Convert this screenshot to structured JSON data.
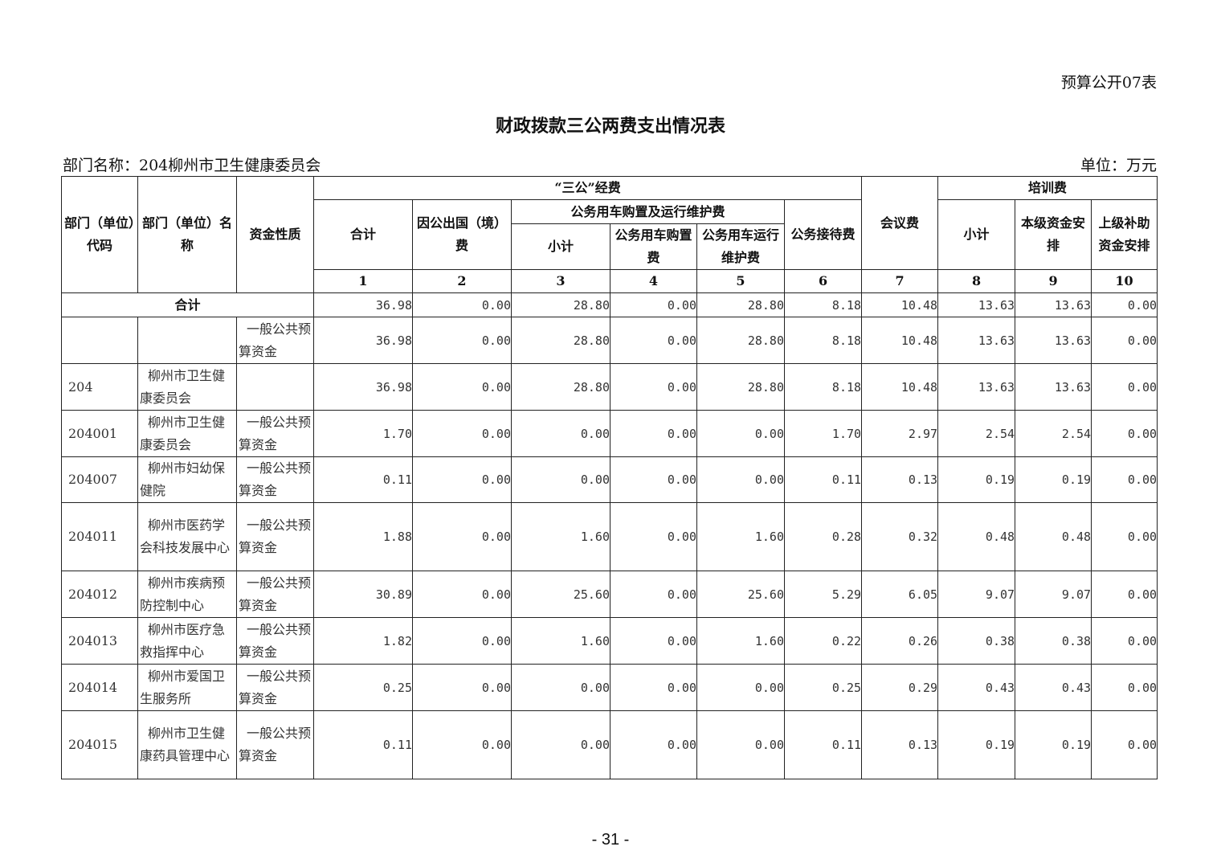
{
  "form_no": "预算公开07表",
  "title": "财政拨款三公两费支出情况表",
  "dept_label": "部门名称：204柳州市卫生健康委员会",
  "unit_label": "单位：万元",
  "headers": {
    "code": "部门（单位）代码",
    "name": "部门（单位）名称",
    "fund": "资金性质",
    "sangong": "“三公”经费",
    "total": "合计",
    "abroad": "因公出国（境）费",
    "car": "公务用车购置及运行维护费",
    "car_sub": "小计",
    "car_buy": "公务用车购置费",
    "car_run": "公务用车运行维护费",
    "reception": "公务接待费",
    "meeting": "会议费",
    "training": "培训费",
    "train_sub": "小计",
    "train_local": "本级资金安排",
    "train_upper": "上级补助资金安排",
    "col_numbers": [
      "1",
      "2",
      "3",
      "4",
      "5",
      "6",
      "7",
      "8",
      "9",
      "10"
    ]
  },
  "total_row": {
    "label": "合计",
    "values": [
      "36.98",
      "0.00",
      "28.80",
      "0.00",
      "28.80",
      "8.18",
      "10.48",
      "13.63",
      "13.63",
      "0.00"
    ]
  },
  "rows": [
    {
      "code": "",
      "name": "",
      "fund": "一般公共预算资金",
      "values": [
        "36.98",
        "0.00",
        "28.80",
        "0.00",
        "28.80",
        "8.18",
        "10.48",
        "13.63",
        "13.63",
        "0.00"
      ]
    },
    {
      "code": "204",
      "name": "柳州市卫生健康委员会",
      "fund": "",
      "values": [
        "36.98",
        "0.00",
        "28.80",
        "0.00",
        "28.80",
        "8.18",
        "10.48",
        "13.63",
        "13.63",
        "0.00"
      ]
    },
    {
      "code": "204001",
      "name": "柳州市卫生健康委员会",
      "fund": "一般公共预算资金",
      "values": [
        "1.70",
        "0.00",
        "0.00",
        "0.00",
        "0.00",
        "1.70",
        "2.97",
        "2.54",
        "2.54",
        "0.00"
      ]
    },
    {
      "code": "204007",
      "name": "柳州市妇幼保健院",
      "fund": "一般公共预算资金",
      "values": [
        "0.11",
        "0.00",
        "0.00",
        "0.00",
        "0.00",
        "0.11",
        "0.13",
        "0.19",
        "0.19",
        "0.00"
      ]
    },
    {
      "code": "204011",
      "name": "柳州市医药学会科技发展中心",
      "fund": "一般公共预算资金",
      "values": [
        "1.88",
        "0.00",
        "1.60",
        "0.00",
        "1.60",
        "0.28",
        "0.32",
        "0.48",
        "0.48",
        "0.00"
      ]
    },
    {
      "code": "204012",
      "name": "柳州市疾病预防控制中心",
      "fund": "一般公共预算资金",
      "values": [
        "30.89",
        "0.00",
        "25.60",
        "0.00",
        "25.60",
        "5.29",
        "6.05",
        "9.07",
        "9.07",
        "0.00"
      ]
    },
    {
      "code": "204013",
      "name": "柳州市医疗急救指挥中心",
      "fund": "一般公共预算资金",
      "values": [
        "1.82",
        "0.00",
        "1.60",
        "0.00",
        "1.60",
        "0.22",
        "0.26",
        "0.38",
        "0.38",
        "0.00"
      ]
    },
    {
      "code": "204014",
      "name": "柳州市爱国卫生服务所",
      "fund": "一般公共预算资金",
      "values": [
        "0.25",
        "0.00",
        "0.00",
        "0.00",
        "0.00",
        "0.25",
        "0.29",
        "0.43",
        "0.43",
        "0.00"
      ]
    },
    {
      "code": "204015",
      "name": "柳州市卫生健康药具管理中心",
      "fund": "一般公共预算资金",
      "values": [
        "0.11",
        "0.00",
        "0.00",
        "0.00",
        "0.00",
        "0.11",
        "0.13",
        "0.19",
        "0.19",
        "0.00"
      ]
    }
  ],
  "page_number": "- 31 -"
}
